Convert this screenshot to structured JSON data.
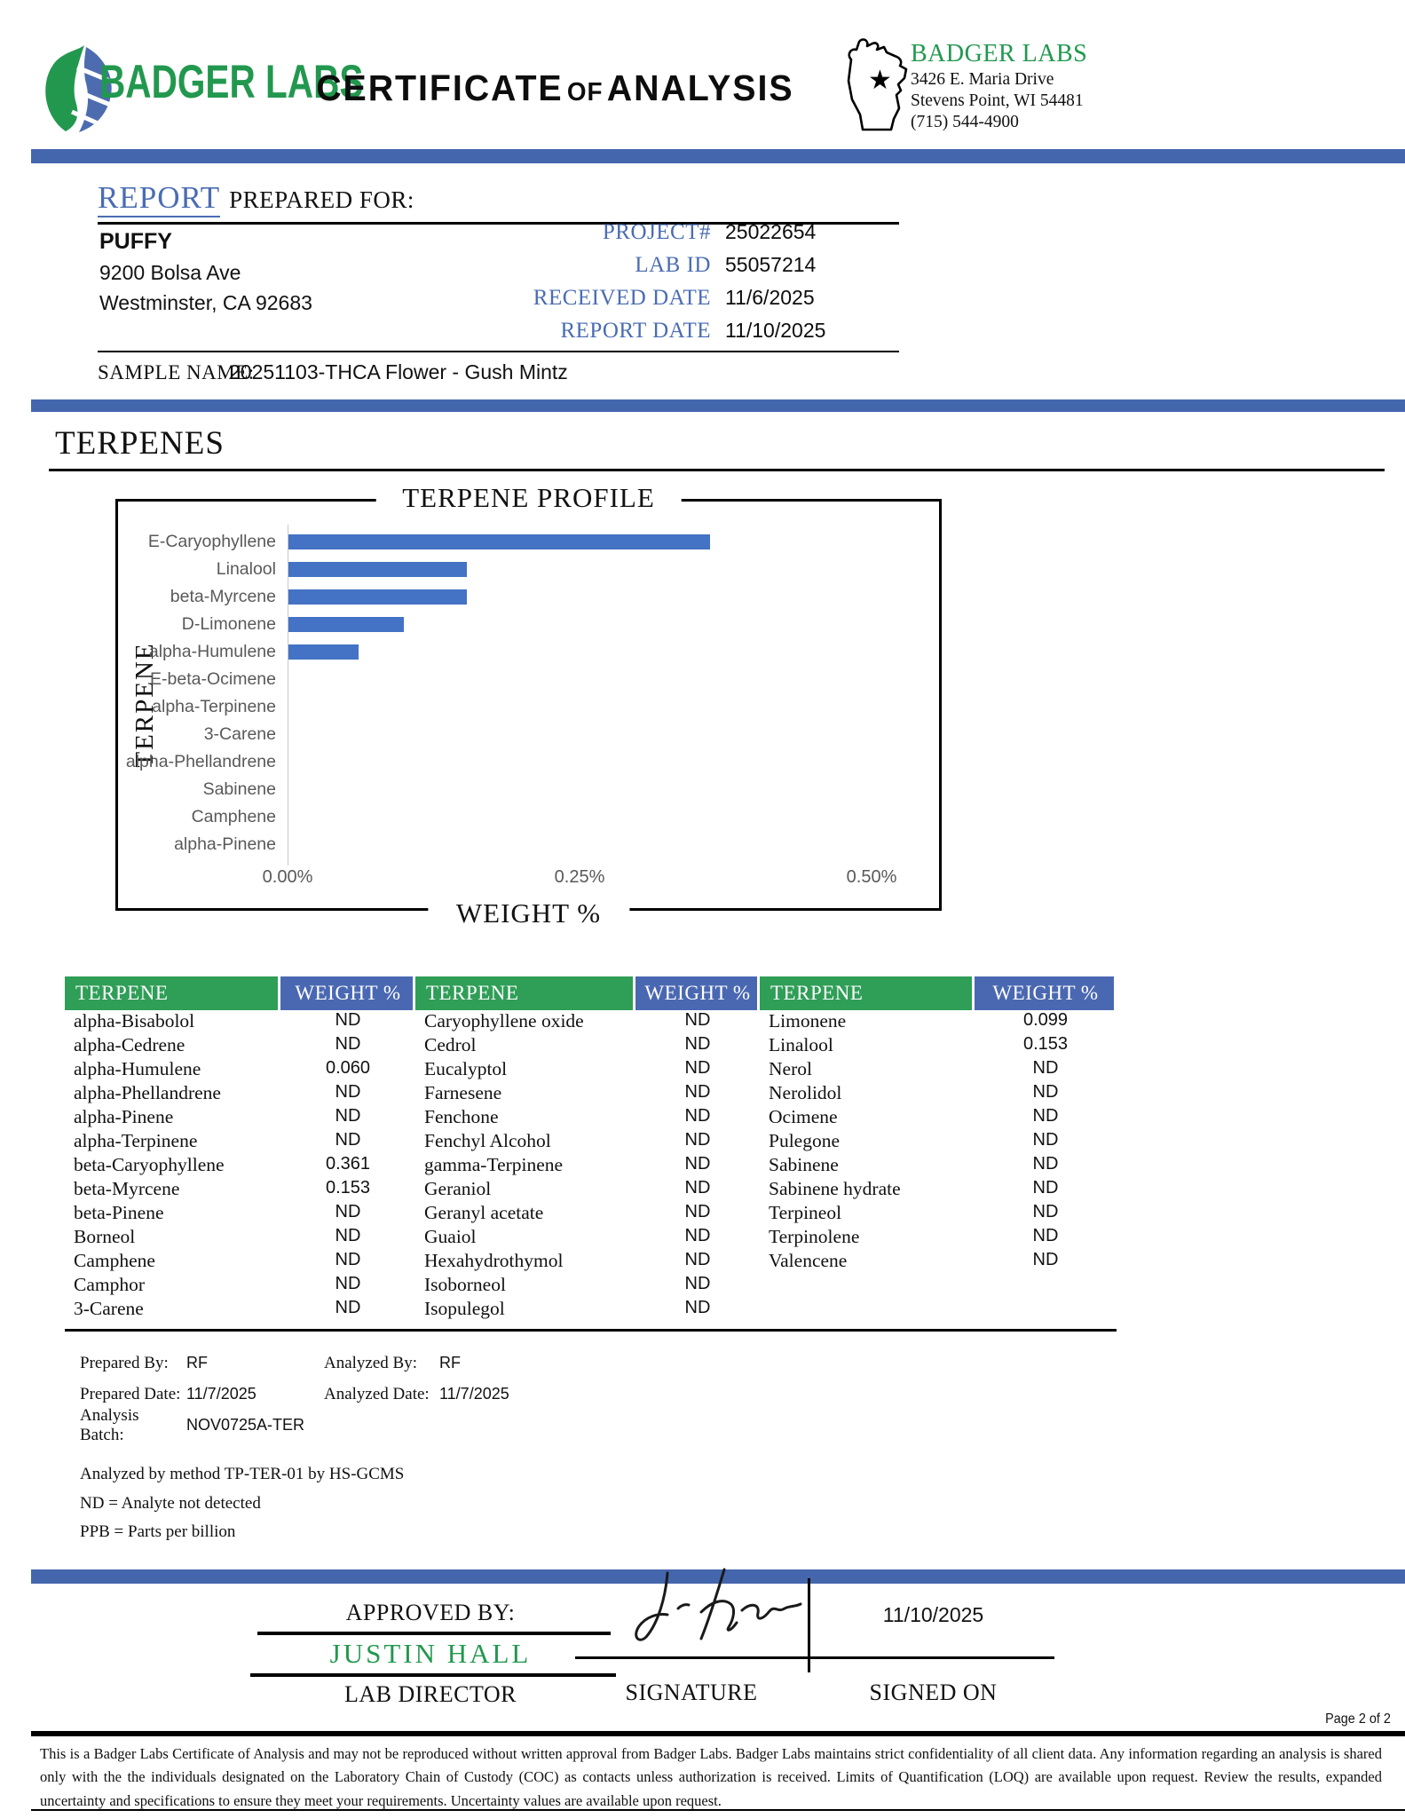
{
  "header": {
    "brand": "BADGER LABS",
    "doc_title_part1": "CERTIFICATE",
    "doc_title_of": "OF",
    "doc_title_part2": "ANALYSIS",
    "lab": {
      "name": "BADGER LABS",
      "address_line1": "3426 E. Maria Drive",
      "address_line2": "Stevens Point, WI 54481",
      "phone": "(715) 544-4900"
    }
  },
  "report": {
    "title_word": "REPORT",
    "title_rest": "PREPARED FOR:",
    "client_name": "PUFFY",
    "client_address1": "9200 Bolsa Ave",
    "client_address2": "Westminster, CA 92683",
    "fields": [
      {
        "label": "PROJECT#",
        "value": "25022654"
      },
      {
        "label": "LAB ID",
        "value": "55057214"
      },
      {
        "label": "RECEIVED DATE",
        "value": "11/6/2025"
      },
      {
        "label": "REPORT DATE",
        "value": "11/10/2025"
      }
    ],
    "sample_name_label": "SAMPLE NAME:",
    "sample_name": "20251103-THCA Flower - Gush Mintz"
  },
  "section_title": "TERPENES",
  "chart_data": {
    "type": "bar",
    "orientation": "horizontal",
    "title": "TERPENE PROFILE",
    "xlabel": "WEIGHT %",
    "ylabel": "TERPENE",
    "categories": [
      "E-Caryophyllene",
      "Linalool",
      "beta-Myrcene",
      "D-Limonene",
      "alpha-Humulene",
      "E-beta-Ocimene",
      "alpha-Terpinene",
      "3-Carene",
      "alpha-Phellandrene",
      "Sabinene",
      "Camphene",
      "alpha-Pinene"
    ],
    "values": [
      0.361,
      0.153,
      0.153,
      0.099,
      0.06,
      0,
      0,
      0,
      0,
      0,
      0,
      0
    ],
    "xlim": [
      0,
      0.5
    ],
    "x_ticks": [
      {
        "label": "0.00%",
        "value": 0
      },
      {
        "label": "0.25%",
        "value": 0.25
      },
      {
        "label": "0.50%",
        "value": 0.5
      }
    ],
    "bar_color": "#4472c4",
    "grid": false,
    "legend": "none"
  },
  "table": {
    "headers": [
      "TERPENE",
      "WEIGHT %",
      "TERPENE",
      "WEIGHT %",
      "TERPENE",
      "WEIGHT %"
    ],
    "rows": [
      [
        "alpha-Bisabolol",
        "ND",
        "Caryophyllene oxide",
        "ND",
        "Limonene",
        "0.099"
      ],
      [
        "alpha-Cedrene",
        "ND",
        "Cedrol",
        "ND",
        "Linalool",
        "0.153"
      ],
      [
        "alpha-Humulene",
        "0.060",
        "Eucalyptol",
        "ND",
        "Nerol",
        "ND"
      ],
      [
        "alpha-Phellandrene",
        "ND",
        "Farnesene",
        "ND",
        "Nerolidol",
        "ND"
      ],
      [
        "alpha-Pinene",
        "ND",
        "Fenchone",
        "ND",
        "Ocimene",
        "ND"
      ],
      [
        "alpha-Terpinene",
        "ND",
        "Fenchyl Alcohol",
        "ND",
        "Pulegone",
        "ND"
      ],
      [
        "beta-Caryophyllene",
        "0.361",
        "gamma-Terpinene",
        "ND",
        "Sabinene",
        "ND"
      ],
      [
        "beta-Myrcene",
        "0.153",
        "Geraniol",
        "ND",
        "Sabinene hydrate",
        "ND"
      ],
      [
        "beta-Pinene",
        "ND",
        "Geranyl acetate",
        "ND",
        "Terpineol",
        "ND"
      ],
      [
        "Borneol",
        "ND",
        "Guaiol",
        "ND",
        "Terpinolene",
        "ND"
      ],
      [
        "Camphene",
        "ND",
        "Hexahydrothymol",
        "ND",
        "Valencene",
        "ND"
      ],
      [
        "Camphor",
        "ND",
        "Isoborneol",
        "ND",
        "",
        ""
      ],
      [
        "3-Carene",
        "ND",
        "Isopulegol",
        "ND",
        "",
        ""
      ]
    ]
  },
  "analysis": {
    "prepared_by_label": "Prepared By:",
    "prepared_by": "RF",
    "analyzed_by_label": "Analyzed By:",
    "analyzed_by": "RF",
    "prepared_date_label": "Prepared Date:",
    "prepared_date": "11/7/2025",
    "analyzed_date_label": "Analyzed Date:",
    "analyzed_date": "11/7/2025",
    "batch_label": "Analysis Batch:",
    "batch": "NOV0725A-TER",
    "method_note": "Analyzed by method TP-TER-01 by HS-GCMS",
    "nd_note": "ND = Analyte not detected",
    "ppb_note": "PPB = Parts per billion"
  },
  "approval": {
    "approved_by_label": "APPROVED BY:",
    "approver": "JUSTIN HALL",
    "approver_title": "LAB DIRECTOR",
    "signature_label": "SIGNATURE",
    "signed_on_label": "SIGNED ON",
    "signed_date": "11/10/2025"
  },
  "footer": {
    "page": "Page 2 of 2",
    "disclaimer": "This is a Badger Labs Certificate of Analysis and may not be reproduced without written approval from Badger Labs. Badger Labs maintains strict confidentiality of all client data. Any information regarding an analysis is shared only with the the individuals designated on the Laboratory Chain of Custody (COC) as contacts unless authorization is received. Limits of Quantification (LOQ) are available upon request. Review the results, expanded uncertainty and specifications to ensure they meet your requirements. Uncertainty values are available upon request."
  },
  "colors": {
    "accent_blue": "#4466ad",
    "bar_blue": "#4472c4",
    "brand_green": "#22984f",
    "label_blue": "#4a6cb3",
    "table_green": "#2f9e57",
    "table_blue": "#4a68b2"
  }
}
